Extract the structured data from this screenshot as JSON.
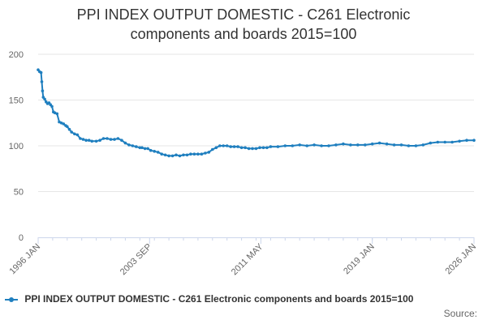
{
  "chart_data": {
    "type": "line",
    "title_line1": "PPI INDEX OUTPUT DOMESTIC - C261 Electronic",
    "title_line2": "components and boards 2015=100",
    "xlabel": "",
    "ylabel": "",
    "ylim": [
      0,
      200
    ],
    "yticks": [
      0,
      50,
      100,
      150,
      200
    ],
    "xlim": [
      1996.0,
      2026.0
    ],
    "xticks": [
      {
        "label": "1996 JAN",
        "x": 1996.0
      },
      {
        "label": "2003 SEP",
        "x": 2003.67
      },
      {
        "label": "2011 MAY",
        "x": 2011.33
      },
      {
        "label": "2019 JAN",
        "x": 2019.0
      },
      {
        "label": "2026 JAN",
        "x": 2026.0
      }
    ],
    "grid": true,
    "legend_position": "bottom-left",
    "color": "#1f7fbf",
    "series": [
      {
        "name": "PPI INDEX OUTPUT DOMESTIC - C261 Electronic components and boards 2015=100",
        "x": [
          1996.0,
          1996.1,
          1996.2,
          1996.25,
          1996.3,
          1996.35,
          1996.45,
          1996.55,
          1996.65,
          1996.75,
          1996.85,
          1996.95,
          1997.05,
          1997.15,
          1997.3,
          1997.45,
          1997.6,
          1997.75,
          1997.9,
          1998.0,
          1998.15,
          1998.3,
          1998.5,
          1998.7,
          1998.9,
          1999.1,
          1999.3,
          1999.5,
          1999.7,
          2000.0,
          2000.25,
          2000.5,
          2000.75,
          2001.0,
          2001.25,
          2001.5,
          2001.75,
          2002.0,
          2002.25,
          2002.5,
          2002.75,
          2003.0,
          2003.15,
          2003.35,
          2003.55,
          2003.75,
          2004.0,
          2004.25,
          2004.5,
          2004.75,
          2005.0,
          2005.25,
          2005.5,
          2005.75,
          2006.0,
          2006.25,
          2006.5,
          2006.75,
          2007.0,
          2007.25,
          2007.5,
          2007.75,
          2008.0,
          2008.25,
          2008.5,
          2008.75,
          2009.0,
          2009.25,
          2009.5,
          2009.75,
          2010.0,
          2010.25,
          2010.5,
          2010.75,
          2011.0,
          2011.25,
          2011.5,
          2011.75,
          2012.0,
          2012.5,
          2013.0,
          2013.5,
          2014.0,
          2014.5,
          2015.0,
          2015.5,
          2016.0,
          2016.5,
          2017.0,
          2017.5,
          2018.0,
          2018.5,
          2019.0,
          2019.5,
          2020.0,
          2020.5,
          2021.0,
          2021.5,
          2022.0,
          2022.5,
          2023.0,
          2023.5,
          2024.0,
          2024.5,
          2025.0,
          2025.5,
          2026.0
        ],
        "values": [
          183,
          181,
          180,
          170,
          160,
          153,
          151,
          148,
          146,
          147,
          145,
          143,
          137,
          136,
          135,
          126,
          125,
          124,
          122,
          121,
          118,
          115,
          113,
          112,
          108,
          107,
          106,
          106,
          105,
          105,
          106,
          108,
          108,
          107,
          107,
          108,
          106,
          103,
          101,
          100,
          99,
          98,
          98,
          97,
          97,
          95,
          94,
          93,
          91,
          90,
          89,
          89,
          90,
          89,
          90,
          90,
          91,
          91,
          91,
          91,
          92,
          93,
          96,
          98,
          100,
          100,
          100,
          99,
          99,
          99,
          98,
          98,
          97,
          97,
          97,
          98,
          98,
          98,
          99,
          99,
          100,
          100,
          101,
          100,
          101,
          100,
          100,
          101,
          102,
          101,
          101,
          101,
          102,
          103,
          102,
          101,
          101,
          100,
          100,
          101,
          103,
          104,
          104,
          104,
          105,
          106,
          106
        ]
      }
    ]
  },
  "source_label": "Source:"
}
